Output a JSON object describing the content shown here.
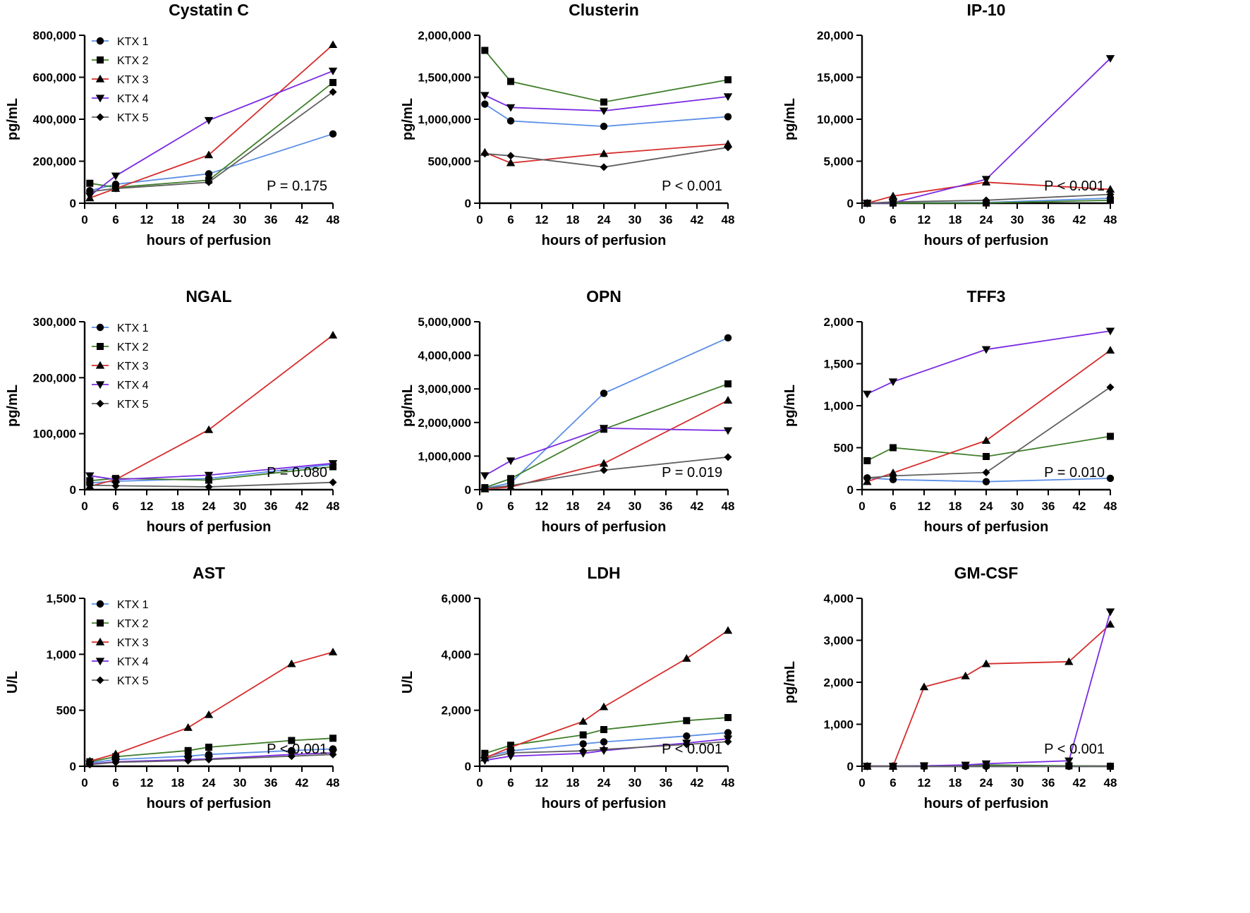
{
  "figure": {
    "colors": {
      "KTX 1": "#5B8FE6",
      "KTX 2": "#3F7F2A",
      "KTX 3": "#D62D2D",
      "KTX 4": "#7A2BE2",
      "KTX 5": "#606060"
    },
    "markers": {
      "KTX 1": "circle",
      "KTX 2": "square",
      "KTX 3": "triangle-up",
      "KTX 4": "triangle-down",
      "KTX 5": "diamond"
    }
  },
  "chart_data": [
    {
      "type": "line",
      "title": "Cystatin C",
      "xlabel": "hours of perfusion",
      "ylabel": "pg/mL",
      "xlim": [
        0,
        48
      ],
      "xticks": [
        0,
        6,
        12,
        18,
        24,
        30,
        36,
        42,
        48
      ],
      "xtick_labels": [
        "0",
        "6",
        "12",
        "18",
        "24",
        "30",
        "36",
        "42",
        "48"
      ],
      "ylim": [
        0,
        800000
      ],
      "yticks": [
        0,
        200000,
        400000,
        600000,
        800000
      ],
      "ytick_labels": [
        "0",
        "200,000",
        "400,000",
        "600,000",
        "800,000"
      ],
      "legend": true,
      "annotation": "P = 0.175",
      "series": [
        {
          "name": "KTX 1",
          "x": [
            1,
            6,
            24,
            48
          ],
          "values": [
            60000,
            90000,
            140000,
            330000
          ]
        },
        {
          "name": "KTX 2",
          "x": [
            1,
            6,
            24,
            48
          ],
          "values": [
            95000,
            75000,
            110000,
            575000
          ]
        },
        {
          "name": "KTX 3",
          "x": [
            1,
            6,
            24,
            48
          ],
          "values": [
            25000,
            70000,
            230000,
            755000
          ]
        },
        {
          "name": "KTX 4",
          "x": [
            1,
            6,
            24,
            48
          ],
          "values": [
            35000,
            130000,
            395000,
            630000
          ]
        },
        {
          "name": "KTX 5",
          "x": [
            1,
            6,
            24,
            48
          ],
          "values": [
            55000,
            70000,
            100000,
            530000
          ]
        }
      ]
    },
    {
      "type": "line",
      "title": "Clusterin",
      "xlabel": "hours of perfusion",
      "ylabel": "pg/mL",
      "xlim": [
        0,
        48
      ],
      "xticks": [
        0,
        6,
        12,
        18,
        24,
        30,
        36,
        42,
        48
      ],
      "xtick_labels": [
        "0",
        "6",
        "12",
        "18",
        "24",
        "30",
        "36",
        "42",
        "48"
      ],
      "ylim": [
        0,
        2000000
      ],
      "yticks": [
        0,
        500000,
        1000000,
        1500000,
        2000000
      ],
      "ytick_labels": [
        "0",
        "500,000",
        "1,000,000",
        "1,500,000",
        "2,000,000"
      ],
      "legend": false,
      "annotation": "P < 0.001",
      "series": [
        {
          "name": "KTX 1",
          "x": [
            1,
            6,
            24,
            48
          ],
          "values": [
            1180000,
            980000,
            915000,
            1030000
          ]
        },
        {
          "name": "KTX 2",
          "x": [
            1,
            6,
            24,
            48
          ],
          "values": [
            1820000,
            1450000,
            1205000,
            1470000
          ]
        },
        {
          "name": "KTX 3",
          "x": [
            1,
            6,
            24,
            48
          ],
          "values": [
            605000,
            480000,
            590000,
            705000
          ]
        },
        {
          "name": "KTX 4",
          "x": [
            1,
            6,
            24,
            48
          ],
          "values": [
            1285000,
            1140000,
            1100000,
            1270000
          ]
        },
        {
          "name": "KTX 5",
          "x": [
            1,
            6,
            24,
            48
          ],
          "values": [
            590000,
            565000,
            430000,
            665000
          ]
        }
      ]
    },
    {
      "type": "line",
      "title": "IP-10",
      "xlabel": "hours of perfusion",
      "ylabel": "pg/mL",
      "xlim": [
        0,
        48
      ],
      "xticks": [
        0,
        6,
        12,
        18,
        24,
        30,
        36,
        42,
        48
      ],
      "xtick_labels": [
        "0",
        "6",
        "12",
        "18",
        "24",
        "30",
        "36",
        "42",
        "48"
      ],
      "ylim": [
        0,
        20000
      ],
      "yticks": [
        0,
        5000,
        10000,
        15000,
        20000
      ],
      "ytick_labels": [
        "0",
        "5,000",
        "10,000",
        "15,000",
        "20,000"
      ],
      "legend": false,
      "annotation": "P < 0.001",
      "series": [
        {
          "name": "KTX 1",
          "x": [
            1,
            6,
            24,
            48
          ],
          "values": [
            0,
            30,
            80,
            600
          ]
        },
        {
          "name": "KTX 2",
          "x": [
            1,
            6,
            24,
            48
          ],
          "values": [
            0,
            20,
            30,
            350
          ]
        },
        {
          "name": "KTX 3",
          "x": [
            1,
            6,
            24,
            48
          ],
          "values": [
            0,
            850,
            2500,
            1650
          ]
        },
        {
          "name": "KTX 4",
          "x": [
            1,
            6,
            24,
            48
          ],
          "values": [
            0,
            50,
            2850,
            17250
          ]
        },
        {
          "name": "KTX 5",
          "x": [
            1,
            6,
            24,
            48
          ],
          "values": [
            0,
            150,
            350,
            1050
          ]
        }
      ]
    },
    {
      "type": "line",
      "title": "NGAL",
      "xlabel": "hours of perfusion",
      "ylabel": "pg/mL",
      "xlim": [
        0,
        48
      ],
      "xticks": [
        0,
        6,
        12,
        18,
        24,
        30,
        36,
        42,
        48
      ],
      "xtick_labels": [
        "0",
        "6",
        "12",
        "18",
        "24",
        "30",
        "36",
        "42",
        "48"
      ],
      "ylim": [
        0,
        300000
      ],
      "yticks": [
        0,
        100000,
        200000,
        300000
      ],
      "ytick_labels": [
        "0",
        "100,000",
        "200,000",
        "300,000"
      ],
      "legend": true,
      "annotation": "P = 0.080",
      "series": [
        {
          "name": "KTX 1",
          "x": [
            1,
            6,
            24,
            48
          ],
          "values": [
            12000,
            15000,
            20000,
            45000
          ]
        },
        {
          "name": "KTX 2",
          "x": [
            1,
            6,
            24,
            48
          ],
          "values": [
            16000,
            20000,
            17000,
            41000
          ]
        },
        {
          "name": "KTX 3",
          "x": [
            1,
            6,
            24,
            48
          ],
          "values": [
            6000,
            18000,
            107000,
            276000
          ]
        },
        {
          "name": "KTX 4",
          "x": [
            1,
            6,
            24,
            48
          ],
          "values": [
            25000,
            18000,
            26000,
            47000
          ]
        },
        {
          "name": "KTX 5",
          "x": [
            1,
            6,
            24,
            48
          ],
          "values": [
            8000,
            7000,
            5000,
            13000
          ]
        }
      ]
    },
    {
      "type": "line",
      "title": "OPN",
      "xlabel": "hours of perfusion",
      "ylabel": "pg/mL",
      "xlim": [
        0,
        48
      ],
      "xticks": [
        0,
        6,
        12,
        18,
        24,
        30,
        36,
        42,
        48
      ],
      "xtick_labels": [
        "0",
        "6",
        "12",
        "18",
        "24",
        "30",
        "36",
        "42",
        "48"
      ],
      "ylim": [
        0,
        5000000
      ],
      "yticks": [
        0,
        1000000,
        2000000,
        3000000,
        4000000,
        5000000
      ],
      "ytick_labels": [
        "0",
        "1,000,000",
        "2,000,000",
        "3,000,000",
        "4,000,000",
        "5,000,000"
      ],
      "legend": false,
      "annotation": "P = 0.019",
      "series": [
        {
          "name": "KTX 1",
          "x": [
            1,
            6,
            24,
            48
          ],
          "values": [
            40000,
            200000,
            2870000,
            4520000
          ]
        },
        {
          "name": "KTX 2",
          "x": [
            1,
            6,
            24,
            48
          ],
          "values": [
            60000,
            330000,
            1800000,
            3150000
          ]
        },
        {
          "name": "KTX 3",
          "x": [
            1,
            6,
            24,
            48
          ],
          "values": [
            20000,
            80000,
            780000,
            2660000
          ]
        },
        {
          "name": "KTX 4",
          "x": [
            1,
            6,
            24,
            48
          ],
          "values": [
            420000,
            860000,
            1830000,
            1760000
          ]
        },
        {
          "name": "KTX 5",
          "x": [
            1,
            6,
            24,
            48
          ],
          "values": [
            40000,
            120000,
            580000,
            970000
          ]
        }
      ]
    },
    {
      "type": "line",
      "title": "TFF3",
      "xlabel": "hours of perfusion",
      "ylabel": "pg/mL",
      "xlim": [
        0,
        48
      ],
      "xticks": [
        0,
        6,
        12,
        18,
        24,
        30,
        36,
        42,
        48
      ],
      "xtick_labels": [
        "0",
        "6",
        "12",
        "18",
        "24",
        "30",
        "36",
        "42",
        "48"
      ],
      "ylim": [
        0,
        2000
      ],
      "yticks": [
        0,
        500,
        1000,
        1500,
        2000
      ],
      "ytick_labels": [
        "0",
        "500",
        "1,000",
        "1,500",
        "2,000"
      ],
      "legend": false,
      "annotation": "P = 0.010",
      "series": [
        {
          "name": "KTX 1",
          "x": [
            1,
            6,
            24,
            48
          ],
          "values": [
            140,
            120,
            95,
            135
          ]
        },
        {
          "name": "KTX 2",
          "x": [
            1,
            6,
            24,
            48
          ],
          "values": [
            345,
            500,
            395,
            635
          ]
        },
        {
          "name": "KTX 3",
          "x": [
            1,
            6,
            24,
            48
          ],
          "values": [
            95,
            200,
            585,
            1660
          ]
        },
        {
          "name": "KTX 4",
          "x": [
            1,
            6,
            24,
            48
          ],
          "values": [
            1140,
            1285,
            1670,
            1890
          ]
        },
        {
          "name": "KTX 5",
          "x": [
            1,
            6,
            24,
            48
          ],
          "values": [
            140,
            165,
            205,
            1220
          ]
        }
      ]
    },
    {
      "type": "line",
      "title": "AST",
      "xlabel": "hours of perfusion",
      "ylabel": "U/L",
      "xlim": [
        0,
        48
      ],
      "xticks": [
        0,
        6,
        12,
        18,
        24,
        30,
        36,
        42,
        48
      ],
      "xtick_labels": [
        "0",
        "6",
        "12",
        "18",
        "24",
        "30",
        "36",
        "42",
        "48"
      ],
      "ylim": [
        0,
        1500
      ],
      "yticks": [
        0,
        500,
        1000,
        1500
      ],
      "ytick_labels": [
        "0",
        "500",
        "1,000",
        "1,500"
      ],
      "legend": true,
      "annotation": "P < 0.001",
      "series": [
        {
          "name": "KTX 1",
          "x": [
            1,
            6,
            20,
            24,
            40,
            48
          ],
          "values": [
            30,
            60,
            90,
            105,
            140,
            155
          ]
        },
        {
          "name": "KTX 2",
          "x": [
            1,
            6,
            20,
            24,
            40,
            48
          ],
          "values": [
            40,
            85,
            140,
            170,
            230,
            250
          ]
        },
        {
          "name": "KTX 3",
          "x": [
            1,
            6,
            20,
            24,
            40,
            48
          ],
          "values": [
            45,
            110,
            345,
            460,
            915,
            1020
          ]
        },
        {
          "name": "KTX 4",
          "x": [
            1,
            6,
            20,
            24,
            40,
            48
          ],
          "values": [
            20,
            40,
            60,
            65,
            105,
            120
          ]
        },
        {
          "name": "KTX 5",
          "x": [
            1,
            6,
            20,
            24,
            40,
            48
          ],
          "values": [
            15,
            35,
            50,
            60,
            90,
            105
          ]
        }
      ]
    },
    {
      "type": "line",
      "title": "LDH",
      "xlabel": "hours of perfusion",
      "ylabel": "U/L",
      "xlim": [
        0,
        48
      ],
      "xticks": [
        0,
        6,
        12,
        18,
        24,
        30,
        36,
        42,
        48
      ],
      "xtick_labels": [
        "0",
        "6",
        "12",
        "18",
        "24",
        "30",
        "36",
        "42",
        "48"
      ],
      "ylim": [
        0,
        6000
      ],
      "yticks": [
        0,
        2000,
        4000,
        6000
      ],
      "ytick_labels": [
        "0",
        "2,000",
        "4,000",
        "6,000"
      ],
      "legend": false,
      "annotation": "P < 0.001",
      "series": [
        {
          "name": "KTX 1",
          "x": [
            1,
            6,
            20,
            24,
            40,
            48
          ],
          "values": [
            330,
            550,
            800,
            870,
            1080,
            1200
          ]
        },
        {
          "name": "KTX 2",
          "x": [
            1,
            6,
            20,
            24,
            40,
            48
          ],
          "values": [
            460,
            750,
            1120,
            1310,
            1630,
            1740
          ]
        },
        {
          "name": "KTX 3",
          "x": [
            1,
            6,
            20,
            24,
            40,
            48
          ],
          "values": [
            290,
            680,
            1600,
            2120,
            3850,
            4850
          ]
        },
        {
          "name": "KTX 4",
          "x": [
            1,
            6,
            20,
            24,
            40,
            48
          ],
          "values": [
            210,
            360,
            460,
            560,
            830,
            980
          ]
        },
        {
          "name": "KTX 5",
          "x": [
            1,
            6,
            20,
            24,
            40,
            48
          ],
          "values": [
            270,
            480,
            550,
            600,
            780,
            880
          ]
        }
      ]
    },
    {
      "type": "line",
      "title": "GM-CSF",
      "xlabel": "hours of perfusion",
      "ylabel": "pg/mL",
      "xlim": [
        0,
        48
      ],
      "xticks": [
        0,
        6,
        12,
        18,
        24,
        30,
        36,
        42,
        48
      ],
      "xtick_labels": [
        "0",
        "6",
        "12",
        "18",
        "24",
        "30",
        "36",
        "42",
        "48"
      ],
      "ylim": [
        0,
        4000
      ],
      "yticks": [
        0,
        1000,
        2000,
        3000,
        4000
      ],
      "ytick_labels": [
        "0",
        "1,000",
        "2,000",
        "3,000",
        "4,000"
      ],
      "legend": false,
      "annotation": "P < 0.001",
      "series": [
        {
          "name": "KTX 1",
          "x": [
            1,
            6,
            12,
            20,
            24,
            40,
            48
          ],
          "values": [
            0,
            0,
            0,
            0,
            0,
            0,
            0
          ]
        },
        {
          "name": "KTX 2",
          "x": [
            1,
            6,
            12,
            20,
            24,
            40,
            48
          ],
          "values": [
            0,
            0,
            10,
            20,
            30,
            10,
            0
          ]
        },
        {
          "name": "KTX 3",
          "x": [
            1,
            6,
            12,
            20,
            24,
            40,
            48
          ],
          "values": [
            0,
            0,
            1890,
            2150,
            2440,
            2490,
            3380
          ]
        },
        {
          "name": "KTX 4",
          "x": [
            1,
            6,
            12,
            20,
            24,
            40,
            48
          ],
          "values": [
            0,
            0,
            10,
            30,
            60,
            130,
            3680
          ]
        },
        {
          "name": "KTX 5",
          "x": [
            1,
            6,
            12,
            20,
            24,
            40,
            48
          ],
          "values": [
            0,
            0,
            0,
            0,
            0,
            0,
            0
          ]
        }
      ]
    }
  ]
}
